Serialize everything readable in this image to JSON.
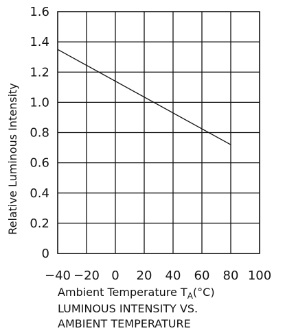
{
  "chart_data": {
    "type": "line",
    "title": "",
    "caption": [
      "LUMINOUS INTENSITY VS.",
      "AMBIENT TEMPERATURE"
    ],
    "xlabel": "Ambient Temperature T",
    "xlabel_subscript": "A",
    "xlabel_unit": "(°C)",
    "ylabel": "Relative Luminous Intensity",
    "xlim": [
      -40,
      100
    ],
    "ylim": [
      0,
      1.6
    ],
    "x_ticks": [
      {
        "value": -40,
        "label": "−40"
      },
      {
        "value": -20,
        "label": "−20"
      },
      {
        "value": 0,
        "label": "0"
      },
      {
        "value": 20,
        "label": "20"
      },
      {
        "value": 40,
        "label": "40"
      },
      {
        "value": 60,
        "label": "60"
      },
      {
        "value": 80,
        "label": "80"
      },
      {
        "value": 100,
        "label": "100"
      }
    ],
    "y_ticks": [
      {
        "value": 0,
        "label": "0"
      },
      {
        "value": 0.2,
        "label": "0.2"
      },
      {
        "value": 0.4,
        "label": "0.4"
      },
      {
        "value": 0.6,
        "label": "0.6"
      },
      {
        "value": 0.8,
        "label": "0.8"
      },
      {
        "value": 1.0,
        "label": "1.0"
      },
      {
        "value": 1.2,
        "label": "1.2"
      },
      {
        "value": 1.4,
        "label": "1.4"
      },
      {
        "value": 1.6,
        "label": "1.6"
      }
    ],
    "grid": true,
    "legend": "none",
    "series": [
      {
        "color": "#111111",
        "points": [
          {
            "x": -40,
            "y": 1.35
          },
          {
            "x": 80,
            "y": 0.72
          }
        ]
      }
    ]
  }
}
